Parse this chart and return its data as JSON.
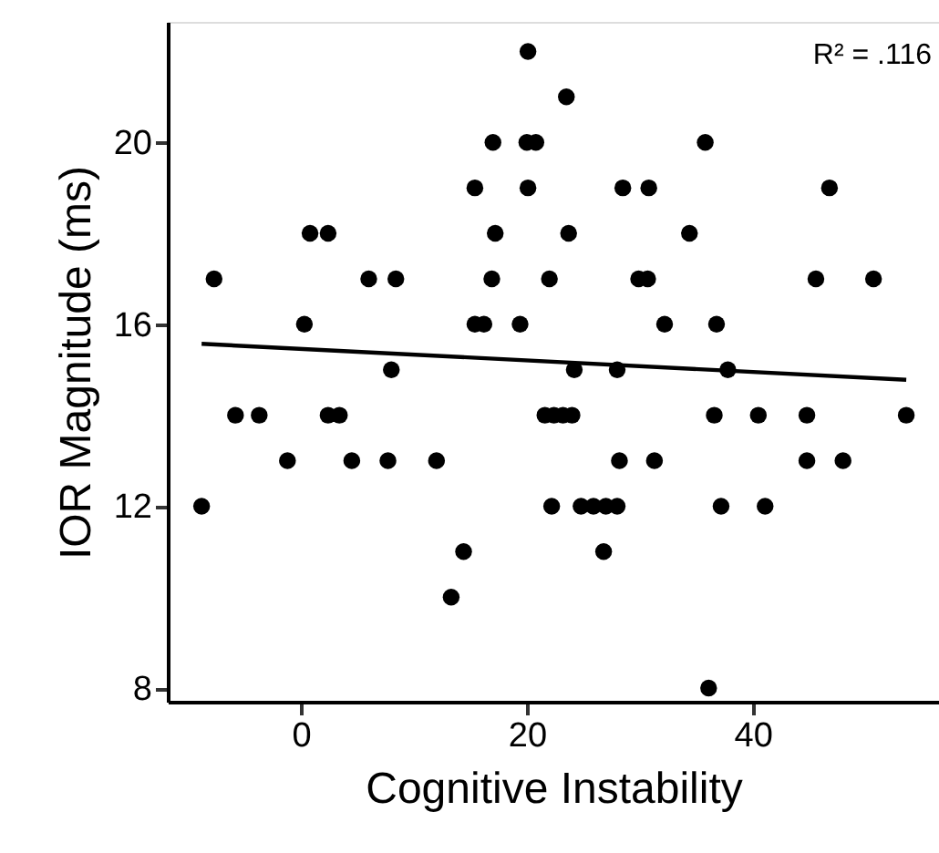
{
  "chart_data": {
    "type": "scatter",
    "xlabel": "Cognitive Instability",
    "ylabel": "IOR Magnitude (ms)",
    "annotations": [
      "R² = .116"
    ],
    "xlim": [
      -11.8,
      56.5
    ],
    "xticks": [
      0,
      20,
      40
    ],
    "ylim": [
      7.7,
      22.65
    ],
    "yticks": [
      8,
      12,
      16,
      20
    ],
    "grid": false,
    "series": [
      {
        "marker": "circle",
        "color": "#000000",
        "x": [
          20.1,
          23.5,
          17.0,
          20.0,
          20.8,
          15.4,
          20.1,
          0.8,
          2.4,
          17.2,
          23.7,
          -7.7,
          6.0,
          8.4,
          16.9,
          22.0,
          0.3,
          15.4,
          16.2,
          19.4,
          35.8,
          28.5,
          30.8,
          46.8,
          34.4,
          29.9,
          30.7,
          45.6,
          50.7,
          32.2,
          36.8,
          8.0,
          -5.8,
          -3.7,
          2.4,
          3.4,
          21.6,
          22.4,
          23.2,
          24.0,
          -1.2,
          4.5,
          7.7,
          12.0,
          -8.8,
          22.2,
          14.4,
          13.3,
          24.2,
          28.0,
          37.8,
          36.6,
          40.5,
          44.8,
          53.6,
          28.2,
          31.3,
          44.8,
          48.0,
          24.8,
          25.9,
          27.0,
          28.0,
          37.2,
          41.1,
          26.8,
          36.1
        ],
        "values": [
          22,
          21,
          20,
          20,
          20,
          19,
          19,
          18,
          18,
          18,
          18,
          17,
          17,
          17,
          17,
          17,
          16,
          16,
          16,
          16,
          20,
          19,
          19,
          19,
          18,
          17,
          17,
          17,
          17,
          16,
          16,
          15,
          14,
          14,
          14,
          14,
          14,
          14,
          14,
          14,
          13,
          13,
          13,
          13,
          12,
          12,
          11,
          10,
          15,
          15,
          15,
          14,
          14,
          14,
          14,
          13,
          13,
          13,
          13,
          12,
          12,
          12,
          12,
          12,
          12,
          11,
          8
        ]
      },
      {
        "type": "line",
        "marker": "none",
        "color": "#000000",
        "line_style": "solid",
        "x": [
          -8.8,
          53.6
        ],
        "values": [
          15.57,
          14.78
        ]
      }
    ]
  }
}
